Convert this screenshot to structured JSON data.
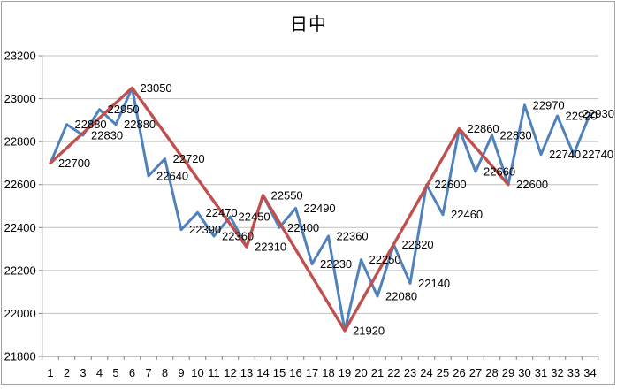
{
  "chart_data": {
    "type": "line",
    "title": "日中",
    "xlabel": "",
    "ylabel": "",
    "x": [
      1,
      2,
      3,
      4,
      5,
      6,
      7,
      8,
      9,
      10,
      11,
      12,
      13,
      14,
      15,
      16,
      17,
      18,
      19,
      20,
      21,
      22,
      23,
      24,
      25,
      26,
      27,
      28,
      29,
      30,
      31,
      32,
      33,
      34
    ],
    "series": [
      {
        "name": "price-series-blue",
        "color": "#4F81BD",
        "width": 3,
        "data_labels": true,
        "values": [
          22700,
          22880,
          22830,
          22950,
          22880,
          23050,
          22640,
          22720,
          22390,
          22470,
          22360,
          22450,
          22310,
          22550,
          22400,
          22490,
          22230,
          22360,
          21920,
          22250,
          22080,
          22320,
          22140,
          22600,
          22460,
          22860,
          22660,
          22830,
          22600,
          22970,
          22740,
          22920,
          22740,
          22930
        ]
      },
      {
        "name": "swing-series-red",
        "color": "#C0504D",
        "width": 3.4,
        "data_labels": false,
        "pivots": [
          [
            1,
            22700
          ],
          [
            6,
            23050
          ],
          [
            13,
            22310
          ],
          [
            14,
            22550
          ],
          [
            19,
            21920
          ],
          [
            26,
            22860
          ],
          [
            29,
            22600
          ]
        ]
      }
    ],
    "ylim": [
      21800,
      23200
    ],
    "y_ticks": [
      23200,
      23000,
      22800,
      22600,
      22400,
      22200,
      22000,
      21800
    ],
    "grid": true,
    "legend_position": "none",
    "colors": {
      "gridline": "#c0c0c0",
      "axis": "#808080",
      "frame_border": "#a3a3a3",
      "label_text": "#000000",
      "background": "#ffffff"
    }
  }
}
